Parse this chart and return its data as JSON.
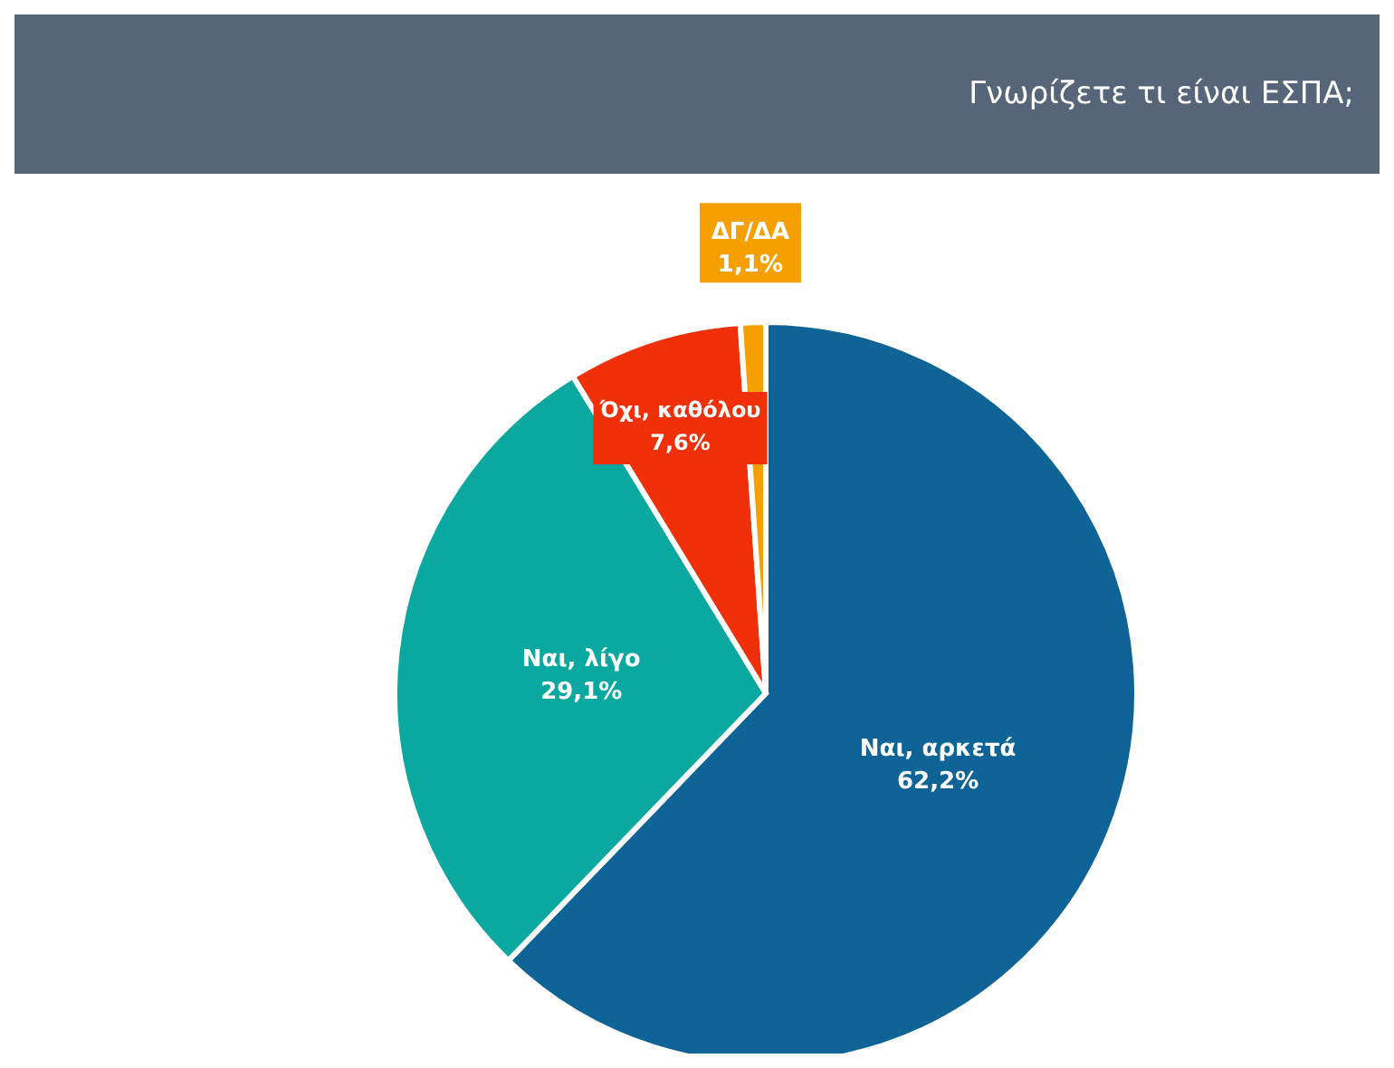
{
  "chart_data": {
    "type": "pie",
    "title": "Γνωρίζετε τι είναι ΕΣΠΑ;",
    "categories": [
      "Ναι, αρκετά",
      "Ναι, λίγο",
      "Όχι, καθόλου",
      "ΔΓ/ΔΑ"
    ],
    "values": [
      62.2,
      29.1,
      7.6,
      1.1
    ],
    "value_labels": [
      "62,2%",
      "29,1%",
      "7,6%",
      "1,1%"
    ],
    "colors": [
      "#0e6496",
      "#0aa89e",
      "#f03008",
      "#f5a000"
    ],
    "legend": false
  }
}
